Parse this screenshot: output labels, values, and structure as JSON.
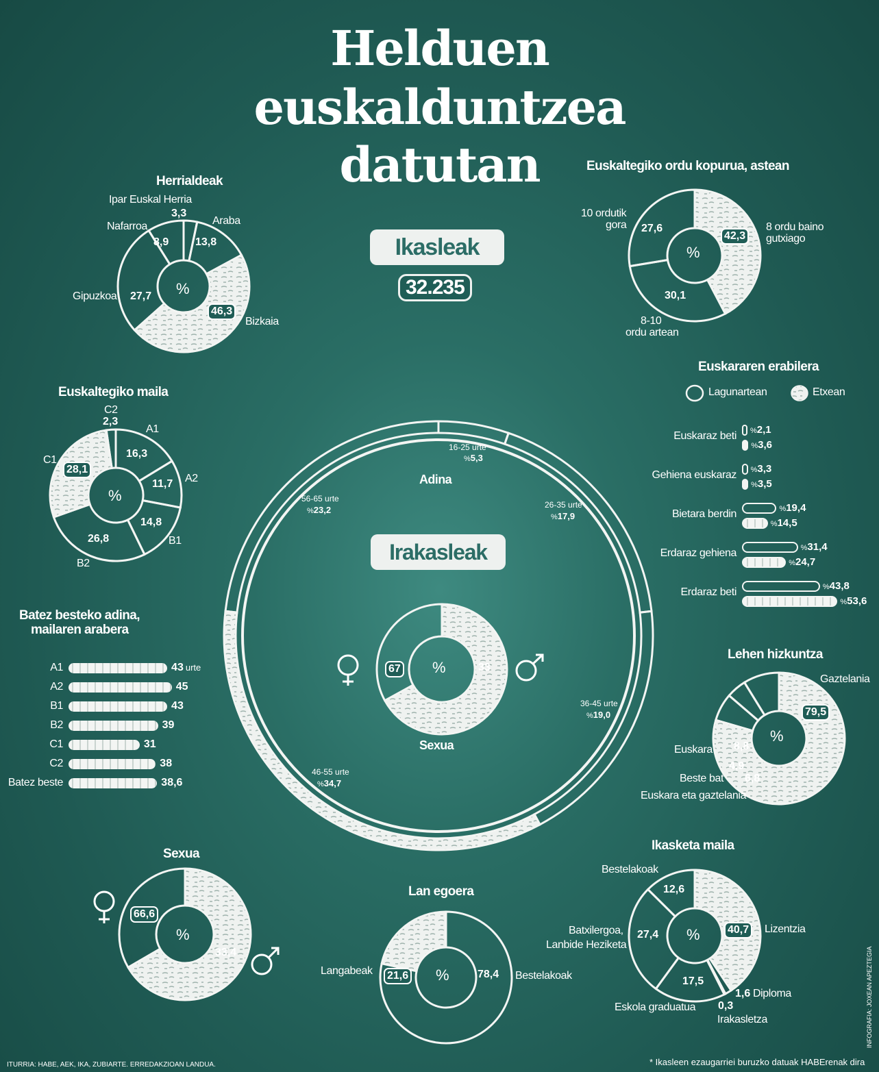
{
  "title_lines": [
    "Helduen",
    "euskalduntzea",
    "datutan"
  ],
  "ikasleak": {
    "label": "Ikasleak",
    "count": "32.235"
  },
  "irakasleak": {
    "label": "Irakasleak",
    "adina": "Adina",
    "sexua": "Sexua"
  },
  "pct_symbol": "%",
  "colors": {
    "background": "#1f5a53",
    "chalk": "#f3f5f3",
    "badge_text": "#2c6d66"
  },
  "herrialdeak": {
    "title": "Herrialdeak",
    "labels": [
      "Ipar Euskal Herria",
      "Araba",
      "Nafarroa",
      "Gipuzkoa",
      "Bizkaia"
    ],
    "values": [
      "3,3",
      "13,8",
      "8,9",
      "27,7",
      "46,3"
    ]
  },
  "ordu": {
    "title": "Euskaltegiko ordu kopurua, astean",
    "l1a": "10 ordutik",
    "l1b": "gora",
    "l2a": "8 ordu baino",
    "l2b": "gutxiago",
    "l3a": "8-10",
    "l3b": "ordu artean",
    "values": [
      "27,6",
      "42,3",
      "30,1"
    ]
  },
  "maila": {
    "title": "Euskaltegiko maila",
    "labels": [
      "C2",
      "A1",
      "A2",
      "B1",
      "B2",
      "C1"
    ],
    "values": [
      "2,3",
      "16,3",
      "11,7",
      "14,8",
      "26,8",
      "28,1"
    ]
  },
  "erabilera": {
    "title": "Euskararen erabilera",
    "legend": [
      "Lagunartean",
      "Etxean"
    ],
    "rows": [
      {
        "label": "Euskaraz beti",
        "a": "2,1",
        "b": "3,6"
      },
      {
        "label": "Gehiena euskaraz",
        "a": "3,3",
        "b": "3,5"
      },
      {
        "label": "Bietara berdin",
        "a": "19,4",
        "b": "14,5"
      },
      {
        "label": "Erdaraz gehiena",
        "a": "31,4",
        "b": "24,7"
      },
      {
        "label": "Erdaraz beti",
        "a": "43,8",
        "b": "53,6"
      }
    ]
  },
  "adina_mailaka": {
    "title1": "Batez besteko adina,",
    "title2": "mailaren arabera",
    "unit": "urte",
    "rows": [
      {
        "label": "A1",
        "value": "43"
      },
      {
        "label": "A2",
        "value": "45"
      },
      {
        "label": "B1",
        "value": "43"
      },
      {
        "label": "B2",
        "value": "39"
      },
      {
        "label": "C1",
        "value": "31"
      },
      {
        "label": "C2",
        "value": "38"
      },
      {
        "label": "Batez beste",
        "value": "38,6"
      }
    ]
  },
  "adina": {
    "labels": [
      "16-25 urte",
      "26-35 urte",
      "36-45 urte",
      "46-55 urte",
      "56-65 urte"
    ],
    "values": [
      "5,3",
      "17,9",
      "19,0",
      "34,7",
      "23,2"
    ]
  },
  "irakasle_sexua": {
    "values": [
      "67",
      "33"
    ]
  },
  "lehen": {
    "title": "Lehen hizkuntza",
    "labels": [
      "Gaztelania",
      "Euskara",
      "Beste bat",
      "Euskara eta gaztelania"
    ],
    "values": [
      "79,5",
      "8,8",
      "4,9",
      "6,8"
    ]
  },
  "sexua": {
    "title": "Sexua",
    "values": [
      "66,6",
      "33,4"
    ]
  },
  "lan": {
    "title": "Lan egoera",
    "labels": [
      "Langabeak",
      "Bestelakoak"
    ],
    "values": [
      "21,6",
      "78,4"
    ]
  },
  "ikasketa": {
    "title": "Ikasketa maila",
    "labels": [
      "Bestelakoak",
      "Lizentzia",
      "Batxilergoa,",
      "Lanbide Heziketa",
      "Diploma",
      "Eskola graduatua",
      "Irakasletza"
    ],
    "values": [
      "12,6",
      "40,7",
      "27,4",
      "17,5",
      "1,6",
      "0,3"
    ]
  },
  "source": "ITURRIA: HABE, AEK, IKA, ZUBIARTE. ERREDAKZIOAN LANDUA.",
  "credit": "INFOGRAFIA: JOXEAN APEZTEGIA",
  "footnote": "* Ikasleen ezaugarriei buruzko datuak HABErenak dira",
  "chart_data": [
    {
      "type": "pie",
      "title": "Herrialdeak",
      "categories": [
        "Ipar Euskal Herria",
        "Araba",
        "Bizkaia",
        "Gipuzkoa",
        "Nafarroa"
      ],
      "values": [
        3.3,
        13.8,
        46.3,
        27.7,
        8.9
      ]
    },
    {
      "type": "pie",
      "title": "Euskaltegiko ordu kopurua, astean",
      "categories": [
        "8 ordu baino gutxiago",
        "8-10 ordu artean",
        "10 ordutik gora"
      ],
      "values": [
        42.3,
        30.1,
        27.6
      ]
    },
    {
      "type": "pie",
      "title": "Euskaltegiko maila",
      "categories": [
        "A1",
        "A2",
        "B1",
        "B2",
        "C1",
        "C2"
      ],
      "values": [
        16.3,
        11.7,
        14.8,
        26.8,
        28.1,
        2.3
      ]
    },
    {
      "type": "bar",
      "title": "Euskararen erabilera",
      "categories": [
        "Euskaraz beti",
        "Gehiena euskaraz",
        "Bietara berdin",
        "Erdaraz gehiena",
        "Erdaraz beti"
      ],
      "series": [
        {
          "name": "Lagunartean",
          "values": [
            2.1,
            3.3,
            19.4,
            31.4,
            43.8
          ]
        },
        {
          "name": "Etxean",
          "values": [
            3.6,
            3.5,
            14.5,
            24.7,
            53.6
          ]
        }
      ]
    },
    {
      "type": "bar",
      "title": "Batez besteko adina, mailaren arabera",
      "categories": [
        "A1",
        "A2",
        "B1",
        "B2",
        "C1",
        "C2",
        "Batez beste"
      ],
      "values": [
        43,
        45,
        43,
        39,
        31,
        38,
        38.6
      ]
    },
    {
      "type": "pie",
      "title": "Adina",
      "categories": [
        "16-25 urte",
        "26-35 urte",
        "36-45 urte",
        "46-55 urte",
        "56-65 urte"
      ],
      "values": [
        5.3,
        17.9,
        19.0,
        34.7,
        23.2
      ]
    },
    {
      "type": "pie",
      "title": "Sexua",
      "categories": [
        "emakumeak",
        "gizonak"
      ],
      "values": [
        67,
        33
      ]
    },
    {
      "type": "pie",
      "title": "Lehen hizkuntza",
      "categories": [
        "Gaztelania",
        "Euskara eta gaztelania",
        "Beste bat",
        "Euskara"
      ],
      "values": [
        79.5,
        6.8,
        4.9,
        8.8
      ]
    },
    {
      "type": "pie",
      "title": "Sexua",
      "categories": [
        "emakumeak",
        "gizonak"
      ],
      "values": [
        66.6,
        33.4
      ]
    },
    {
      "type": "pie",
      "title": "Lan egoera",
      "categories": [
        "Bestelakoak",
        "Langabeak"
      ],
      "values": [
        78.4,
        21.6
      ]
    },
    {
      "type": "pie",
      "title": "Ikasketa maila",
      "categories": [
        "Lizentzia",
        "Diploma",
        "Irakasletza",
        "Eskola graduatua",
        "Batxilergoa, Lanbide Heziketa",
        "Bestelakoak"
      ],
      "values": [
        40.7,
        1.6,
        0.3,
        17.5,
        27.4,
        12.6
      ]
    }
  ]
}
